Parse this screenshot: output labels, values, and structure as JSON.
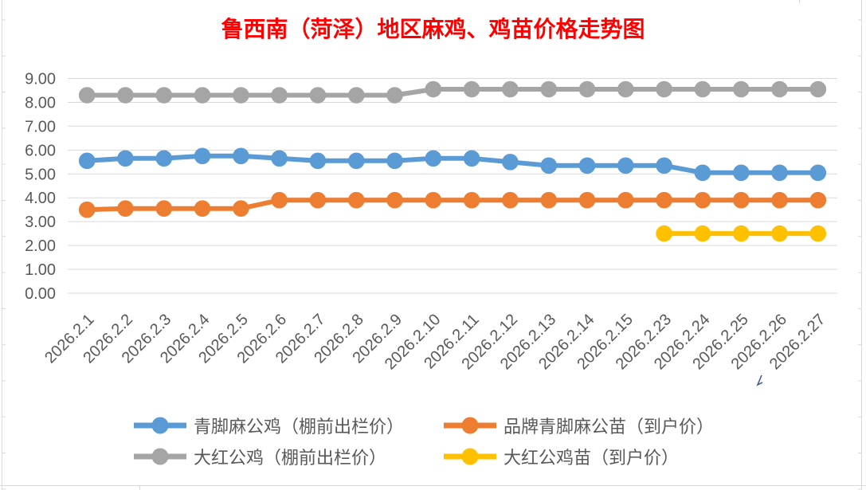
{
  "title": "鲁西南（菏泽）地区麻鸡、鸡苗价格走势图",
  "colors": {
    "title": "#FF0000",
    "axis_text": "#595959",
    "gridline": "#D9D9D9",
    "sheet_line": "#D9D9D9",
    "background": "#FFFFFF",
    "series_blue": "#5B9BD5",
    "series_orange": "#ED7D31",
    "series_gray": "#A5A5A5",
    "series_yellow": "#FFC000"
  },
  "chart_data": {
    "type": "line",
    "title": "鲁西南（菏泽）地区麻鸡、鸡苗价格走势图",
    "categories": [
      "2026.2.1",
      "2026.2.2",
      "2026.2.3",
      "2026.2.4",
      "2026.2.5",
      "2026.2.6",
      "2026.2.7",
      "2026.2.8",
      "2026.2.9",
      "2026.2.10",
      "2026.2.11",
      "2026.2.12",
      "2026.2.13",
      "2026.2.14",
      "2026.2.15",
      "2026.2.23",
      "2026.2.24",
      "2026.2.25",
      "2026.2.26",
      "2026.2.27"
    ],
    "series": [
      {
        "name": "青脚麻公鸡（棚前出栏价）",
        "color": "#5B9BD5",
        "marker": "circle",
        "values": [
          5.55,
          5.65,
          5.65,
          5.75,
          5.75,
          5.65,
          5.55,
          5.55,
          5.55,
          5.65,
          5.65,
          5.5,
          5.35,
          5.35,
          5.35,
          5.35,
          5.05,
          5.05,
          5.05,
          5.05
        ]
      },
      {
        "name": "品牌青脚麻公苗（到户价）",
        "color": "#ED7D31",
        "marker": "circle",
        "values": [
          3.5,
          3.55,
          3.55,
          3.55,
          3.55,
          3.9,
          3.9,
          3.9,
          3.9,
          3.9,
          3.9,
          3.9,
          3.9,
          3.9,
          3.9,
          3.9,
          3.9,
          3.9,
          3.9,
          3.9
        ]
      },
      {
        "name": "大红公鸡（棚前出栏价）",
        "color": "#A5A5A5",
        "marker": "circle",
        "values": [
          8.3,
          8.3,
          8.3,
          8.3,
          8.3,
          8.3,
          8.3,
          8.3,
          8.3,
          8.55,
          8.55,
          8.55,
          8.55,
          8.55,
          8.55,
          8.55,
          8.55,
          8.55,
          8.55,
          8.55
        ]
      },
      {
        "name": "大红公鸡苗（到户价）",
        "color": "#FFC000",
        "marker": "circle",
        "values": [
          null,
          null,
          null,
          null,
          null,
          null,
          null,
          null,
          null,
          null,
          null,
          null,
          null,
          null,
          null,
          2.5,
          2.5,
          2.5,
          2.5,
          2.5
        ]
      }
    ],
    "yticks": [
      "0.00",
      "1.00",
      "2.00",
      "3.00",
      "4.00",
      "5.00",
      "6.00",
      "7.00",
      "8.00",
      "9.00"
    ],
    "ylim": [
      0,
      9
    ],
    "ytick_step": 1,
    "xlabel": "",
    "ylabel": "",
    "x_label_rotation": -45,
    "grid": true,
    "legend_position": "bottom"
  }
}
